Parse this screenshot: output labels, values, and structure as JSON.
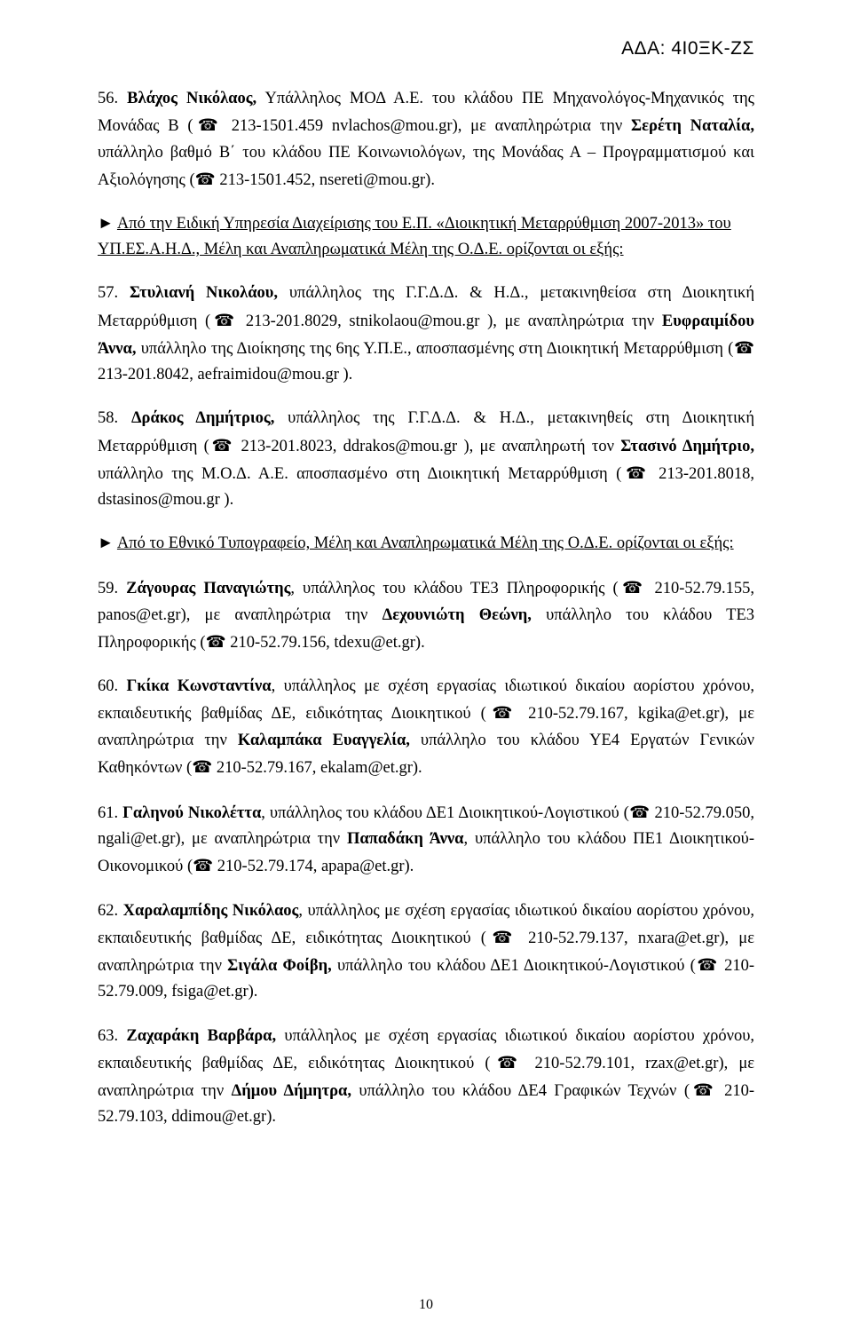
{
  "header_code": "ΑΔΑ: 4Ι0ΞΚ-ΖΣ",
  "page_number": "10",
  "phone_glyph": "☎",
  "para56": {
    "prefix": "56. ",
    "name1": "Βλάχος Νικόλαος,",
    "t1": " Υπάλληλος ΜΟΔ Α.Ε. του κλάδου ΠΕ Μηχανολόγος-Μηχανικός της Μονάδας Β (",
    "phone1": " 213-1501.459 nvlachos@mou.gr), με αναπληρώτρια την ",
    "name2": "Σερέτη Ναταλία,",
    "t2": " υπάλληλο βαθμό Β΄ του κλάδου ΠΕ Κοινωνιολόγων, της Μονάδας Α – Προγραμματισμού και Αξιολόγησης (",
    "phone2": " 213-1501.452, nsereti@mou.gr)."
  },
  "section1": {
    "arrow": "► ",
    "u1": "Από την Ειδική Υπηρεσία Διαχείρισης του Ε.Π. «Διοικητική Μεταρρύθμιση 2007-2013» του ΥΠ.ΕΣ.Α.Η.Δ., Μέλη και Αναπληρωματικά Μέλη της Ο.Δ.Ε. ορίζονται οι εξής:"
  },
  "para57": {
    "prefix": "57. ",
    "name1": "Στυλιανή Νικολάου,",
    "t1": " υπάλληλος της Γ.Γ.Δ.Δ. & Η.Δ., μετακινηθείσα στη Διοικητική Μεταρρύθμιση (",
    "phone1": " 213-201.8029, stnikolaou@mou.gr ), με αναπληρώτρια την ",
    "name2": "Ευφραιμίδου Άννα,",
    "t2": " υπάλληλο της Διοίκησης της 6ης Υ.Π.Ε., αποσπασμένης στη Διοικητική Μεταρρύθμιση (",
    "phone2": " 213-201.8042, aefraimidou@mou.gr )."
  },
  "para58": {
    "prefix": "58. ",
    "name1": "Δράκος Δημήτριος,",
    "t1": " υπάλληλος της Γ.Γ.Δ.Δ. & Η.Δ., μετακινηθείς στη Διοικητική Μεταρρύθμιση (",
    "phone1": " 213-201.8023, ddrakos@mou.gr ), με αναπληρωτή τον ",
    "name2": "Στασινό Δημήτριο,",
    "t2": " υπάλληλο της Μ.Ο.Δ. Α.Ε. αποσπασμένο στη Διοικητική Μεταρρύθμιση (",
    "phone2": " 213-201.8018, dstasinos@mou.gr )."
  },
  "section2": {
    "arrow": "► ",
    "u1": "Από το Εθνικό Τυπογραφείο, Μέλη και Αναπληρωματικά Μέλη της Ο.Δ.Ε. ορίζονται οι εξής:"
  },
  "para59": {
    "prefix": "59. ",
    "name1": "Ζάγουρας Παναγιώτης",
    "t1": ", υπάλληλος του κλάδου ΤΕ3 Πληροφορικής (",
    "phone1": " 210-52.79.155, panos@et.gr), με αναπληρώτρια την ",
    "name2": "Δεχουνιώτη Θεώνη,",
    "t2": " υπάλληλο του κλάδου ΤΕ3 Πληροφορικής (",
    "phone2": " 210-52.79.156, tdexu@et.gr)."
  },
  "para60": {
    "prefix": "60. ",
    "name1": "Γκίκα Κωνσταντίνα",
    "t1": ", υπάλληλος με σχέση εργασίας ιδιωτικού δικαίου αορίστου χρόνου, εκπαιδευτικής βαθμίδας ΔΕ, ειδικότητας Διοικητικού (",
    "phone1": " 210-52.79.167, kgika@et.gr), με αναπληρώτρια την ",
    "name2": "Καλαμπάκα Ευαγγελία,",
    "t2": " υπάλληλο του κλάδου ΥΕ4 Εργατών Γενικών Καθηκόντων (",
    "phone2": " 210-52.79.167, ekalam@et.gr)."
  },
  "para61": {
    "prefix": "61. ",
    "name1": "Γαληνού Νικολέττα",
    "t1": ", υπάλληλος του κλάδου ΔΕ1 Διοικητικού-Λογιστικού (",
    "phone1": " 210-52.79.050, ngali@et.gr), με αναπληρώτρια την ",
    "name2": "Παπαδάκη Άννα",
    "t2": ", υπάλληλο του κλάδου ΠΕ1 Διοικητικού-Οικονομικού (",
    "phone2": " 210-52.79.174, apapa@et.gr)."
  },
  "para62": {
    "prefix": "62. ",
    "name1": "Χαραλαμπίδης Νικόλαος",
    "t1": ", υπάλληλος με σχέση εργασίας ιδιωτικού δικαίου αορίστου χρόνου, εκπαιδευτικής βαθμίδας ΔΕ, ειδικότητας Διοικητικού (",
    "phone1": " 210-52.79.137, nxara@et.gr), με αναπληρώτρια την ",
    "name2": "Σιγάλα Φοίβη,",
    "t2": " υπάλληλο του κλάδου ΔΕ1 Διοικητικού-Λογιστικού (",
    "phone2": " 210-52.79.009, fsiga@et.gr)."
  },
  "para63": {
    "prefix": "63. ",
    "name1": "Ζαχαράκη Βαρβάρα,",
    "t1": " υπάλληλος με σχέση εργασίας ιδιωτικού δικαίου αορίστου χρόνου, εκπαιδευτικής βαθμίδας ΔΕ, ειδικότητας Διοικητικού (",
    "phone1": " 210-52.79.101, rzax@et.gr), με αναπληρώτρια την ",
    "name2": "Δήμου Δήμητρα,",
    "t2": " υπάλληλο του κλάδου ΔΕ4 Γραφικών Τεχνών (",
    "phone2": " 210-52.79.103, ddimou@et.gr)."
  }
}
